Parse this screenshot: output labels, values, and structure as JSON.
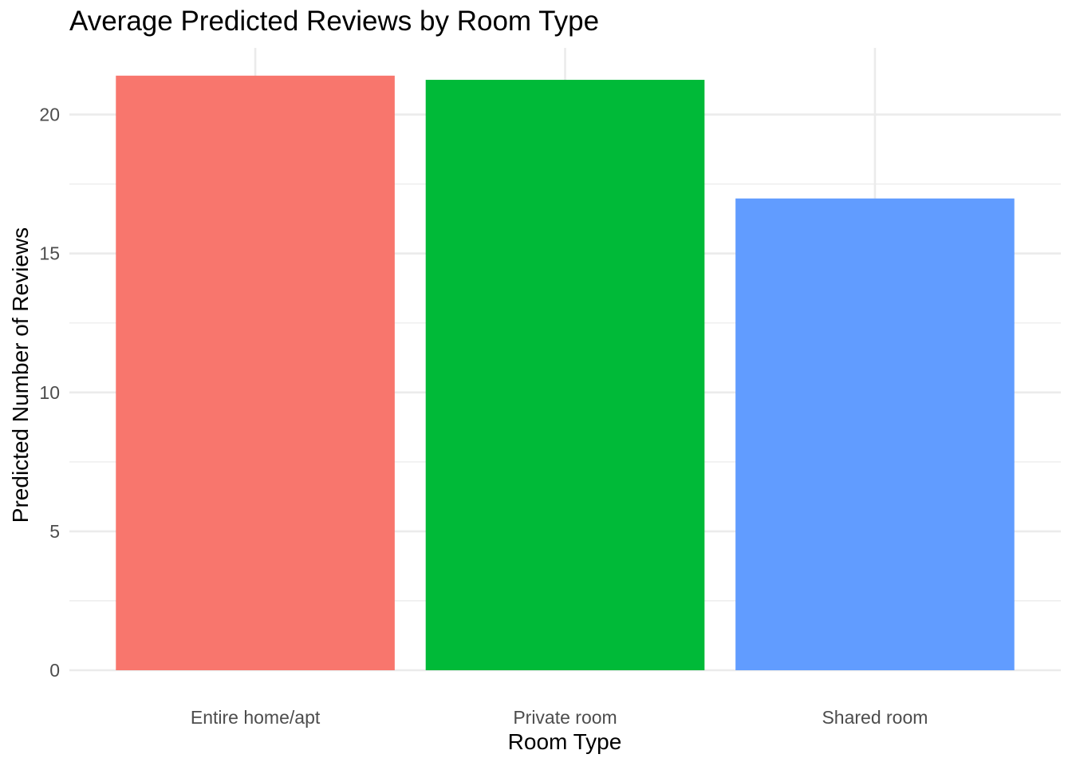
{
  "chart_data": {
    "type": "bar",
    "title": "Average Predicted Reviews by Room Type",
    "xlabel": "Room Type",
    "ylabel": "Predicted Number of Reviews",
    "categories": [
      "Entire home/apt",
      "Private room",
      "Shared room"
    ],
    "values": [
      21.4,
      21.25,
      16.98
    ],
    "colors": [
      "#F8766D",
      "#00BA38",
      "#619CFF"
    ],
    "ylim": [
      0,
      22.4
    ],
    "yticks": [
      0,
      5,
      10,
      15,
      20
    ],
    "ytick_labels": [
      "0",
      "5",
      "10",
      "15",
      "20"
    ],
    "grid": true,
    "legend": "none",
    "theme": "minimal"
  }
}
